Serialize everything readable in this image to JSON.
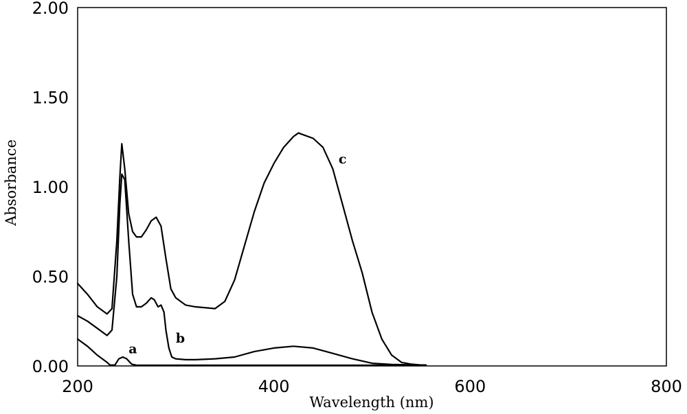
{
  "chart_data": {
    "type": "line",
    "xlabel": "Wavelength (nm)",
    "ylabel": "Absorbance",
    "xlim": [
      200,
      800
    ],
    "ylim": [
      0,
      2.0
    ],
    "x_ticks": [
      200,
      400,
      600,
      800
    ],
    "x_tick_labels": [
      "200",
      "400",
      "600",
      "800"
    ],
    "y_ticks": [
      0,
      0.5,
      1.0,
      1.5,
      2.0
    ],
    "y_tick_labels": [
      "0.00",
      "0.50",
      "1.00",
      "1.50",
      "2.00"
    ],
    "grid": false,
    "series": [
      {
        "name": "a",
        "x": [
          200,
          210,
          220,
          230,
          233,
          238,
          242,
          246,
          250,
          255,
          260,
          300,
          400,
          500,
          555
        ],
        "y": [
          0.15,
          0.11,
          0.06,
          0.02,
          0.005,
          0.005,
          0.04,
          0.05,
          0.04,
          0.01,
          0.004,
          0.004,
          0.004,
          0.004,
          0.004
        ]
      },
      {
        "name": "b",
        "x": [
          200,
          210,
          220,
          230,
          235,
          240,
          243,
          245,
          248,
          252,
          256,
          260,
          265,
          270,
          275,
          278,
          282,
          285,
          288,
          290,
          293,
          296,
          300,
          310,
          320,
          340,
          360,
          380,
          400,
          420,
          440,
          460,
          480,
          500,
          520,
          540,
          555
        ],
        "y": [
          0.28,
          0.25,
          0.21,
          0.17,
          0.2,
          0.5,
          0.9,
          1.07,
          1.04,
          0.7,
          0.4,
          0.33,
          0.33,
          0.35,
          0.38,
          0.37,
          0.33,
          0.34,
          0.3,
          0.2,
          0.1,
          0.05,
          0.04,
          0.035,
          0.035,
          0.04,
          0.05,
          0.08,
          0.1,
          0.11,
          0.1,
          0.07,
          0.04,
          0.015,
          0.008,
          0.006,
          0.005
        ]
      },
      {
        "name": "c",
        "x": [
          200,
          210,
          220,
          230,
          235,
          240,
          243,
          245,
          248,
          252,
          256,
          260,
          265,
          270,
          275,
          280,
          285,
          290,
          295,
          300,
          310,
          320,
          340,
          350,
          360,
          370,
          380,
          390,
          400,
          410,
          420,
          425,
          430,
          440,
          450,
          460,
          470,
          480,
          490,
          500,
          510,
          520,
          530,
          540,
          550,
          555
        ],
        "y": [
          0.46,
          0.4,
          0.33,
          0.29,
          0.32,
          0.7,
          1.05,
          1.24,
          1.1,
          0.85,
          0.75,
          0.72,
          0.72,
          0.76,
          0.81,
          0.83,
          0.78,
          0.6,
          0.43,
          0.38,
          0.34,
          0.33,
          0.32,
          0.36,
          0.48,
          0.67,
          0.86,
          1.02,
          1.13,
          1.22,
          1.28,
          1.3,
          1.29,
          1.27,
          1.22,
          1.1,
          0.9,
          0.7,
          0.52,
          0.3,
          0.15,
          0.06,
          0.02,
          0.01,
          0.005,
          0.005
        ]
      }
    ],
    "annotations": [
      {
        "text": "a",
        "x": 252,
        "y": 0.07
      },
      {
        "text": "b",
        "x": 300,
        "y": 0.13
      },
      {
        "text": "c",
        "x": 466,
        "y": 1.13
      }
    ]
  }
}
